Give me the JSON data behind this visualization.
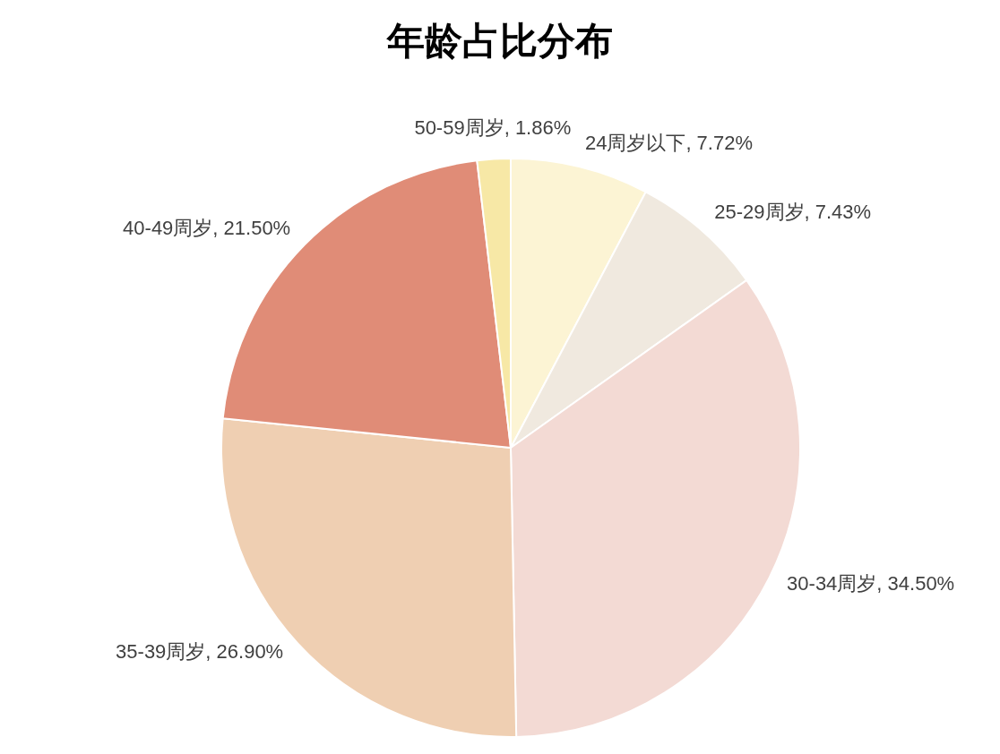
{
  "chart_data": {
    "type": "pie",
    "title": "年龄占比分布",
    "categories": [
      "24周岁以下",
      "25-29周岁",
      "30-34周岁",
      "35-39周岁",
      "40-49周岁",
      "50-59周岁"
    ],
    "values": [
      7.72,
      7.43,
      34.5,
      26.9,
      21.5,
      1.86
    ],
    "value_labels": [
      "7.72%",
      "7.43%",
      "34.50%",
      "26.90%",
      "21.50%",
      "1.86%"
    ],
    "colors": [
      "#fcf4d4",
      "#f0e9df",
      "#f3dad4",
      "#efcfb2",
      "#e08c77",
      "#f7e8a6"
    ]
  }
}
